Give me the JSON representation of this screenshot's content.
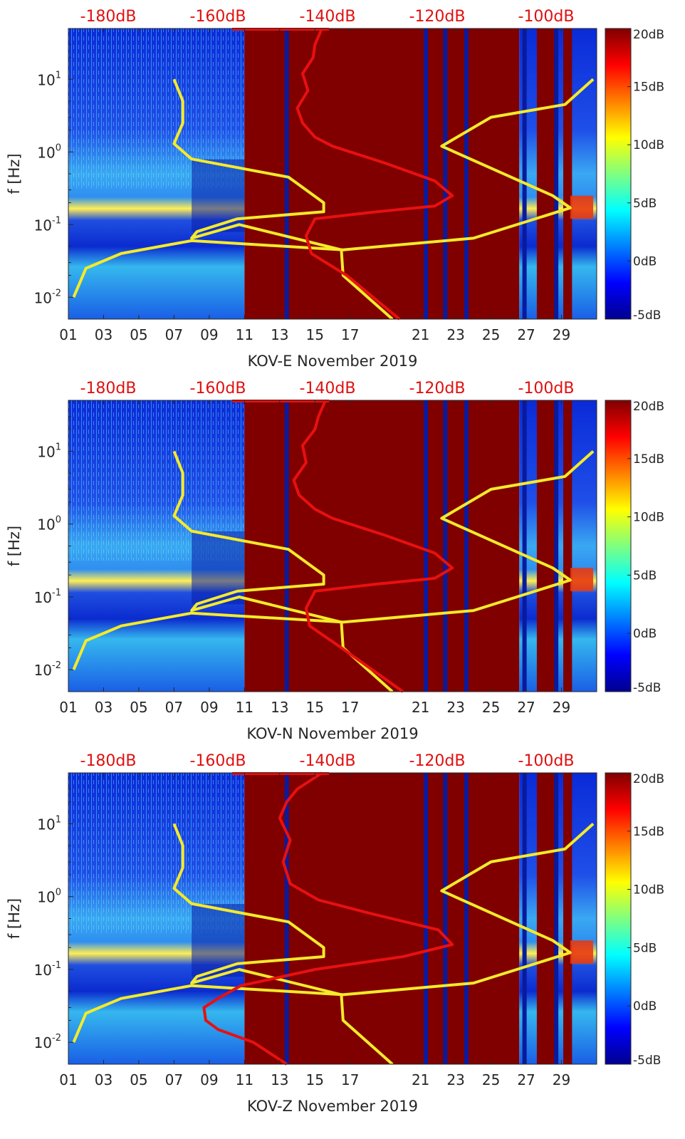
{
  "chart_data": [
    {
      "type": "heatmap",
      "title": "KOV-E November 2019",
      "xlabel": "KOV-E November 2019",
      "ylabel": "f [Hz]",
      "x_ticks": [
        "01",
        "03",
        "05",
        "07",
        "09",
        "11",
        "13",
        "15",
        "17",
        "21",
        "23",
        "25",
        "27",
        "29"
      ],
      "y_ticks": [
        {
          "exp": "-2"
        },
        {
          "exp": "-1"
        },
        {
          "exp": "0"
        },
        {
          "exp": "1"
        }
      ],
      "yscale": "log",
      "ylim": [
        0.005,
        50
      ],
      "top_axis_ticks": [
        "-180dB",
        "-160dB",
        "-140dB",
        "-120dB",
        "-100dB"
      ],
      "colorbar": {
        "ticks": [
          "20dB",
          "15dB",
          "10dB",
          "5dB",
          "0dB",
          "-5dB"
        ],
        "range": [
          -5,
          20
        ]
      },
      "saturated_segments": [
        [
          11,
          26.6
        ],
        [
          27.6,
          28.6
        ],
        [
          29.1,
          29.6
        ]
      ],
      "dark_stripes": [
        13.4,
        21.3,
        22.4,
        23.6,
        26.9,
        28.7
      ],
      "series": [
        {
          "name": "yellow",
          "color": "#f5ea2a",
          "x": [
            19.4,
            16.6,
            16.5,
            10.7,
            8.0,
            8.3,
            10.6,
            15.5,
            15.5,
            13.5,
            8.0,
            7.0,
            7.5,
            7.5,
            7.0
          ],
          "y": [
            0.005,
            0.02,
            0.045,
            0.1,
            0.065,
            0.08,
            0.12,
            0.15,
            0.2,
            0.45,
            0.8,
            1.3,
            2.5,
            5,
            10
          ],
          "x2": [
            1.3,
            2.0,
            4.0,
            8.0,
            16.6,
            24.0,
            29.5,
            28.5,
            22.2,
            25.0,
            29.2,
            30.8
          ],
          "y2": [
            0.01,
            0.025,
            0.04,
            0.06,
            0.045,
            0.065,
            0.17,
            0.25,
            1.2,
            3.0,
            4.5,
            10
          ]
        },
        {
          "name": "red",
          "color": "#e81010",
          "x": [
            19.8,
            16.8,
            14.8,
            14.5,
            15.0,
            18.5,
            21.8,
            22.8,
            21.8,
            19.0,
            16.0,
            15.0,
            14.3,
            14.0,
            14.6,
            14.3,
            14.9,
            15.0,
            15.4
          ],
          "y": [
            0.005,
            0.02,
            0.04,
            0.07,
            0.12,
            0.15,
            0.18,
            0.25,
            0.4,
            0.7,
            1.2,
            1.6,
            2.5,
            4,
            7,
            12,
            20,
            30,
            50
          ]
        }
      ]
    },
    {
      "type": "heatmap",
      "title": "KOV-N November 2019",
      "xlabel": "KOV-N November 2019",
      "ylabel": "f [Hz]",
      "x_ticks": [
        "01",
        "03",
        "05",
        "07",
        "09",
        "11",
        "13",
        "15",
        "17",
        "21",
        "23",
        "25",
        "27",
        "29"
      ],
      "y_ticks": [
        {
          "exp": "-2"
        },
        {
          "exp": "-1"
        },
        {
          "exp": "0"
        },
        {
          "exp": "1"
        }
      ],
      "yscale": "log",
      "ylim": [
        0.005,
        50
      ],
      "top_axis_ticks": [
        "-180dB",
        "-160dB",
        "-140dB",
        "-120dB",
        "-100dB"
      ],
      "colorbar": {
        "ticks": [
          "20dB",
          "15dB",
          "10dB",
          "5dB",
          "0dB",
          "-5dB"
        ],
        "range": [
          -5,
          20
        ]
      },
      "saturated_segments": [
        [
          11,
          26.6
        ],
        [
          27.6,
          28.6
        ],
        [
          29.1,
          29.6
        ]
      ],
      "dark_stripes": [
        13.4,
        21.3,
        22.4,
        23.6,
        26.9,
        28.7
      ],
      "series": [
        {
          "name": "yellow",
          "color": "#f5ea2a",
          "x": [
            19.4,
            16.6,
            16.5,
            10.7,
            8.0,
            8.3,
            10.6,
            15.5,
            15.5,
            13.5,
            8.0,
            7.0,
            7.5,
            7.5,
            7.0
          ],
          "y": [
            0.005,
            0.02,
            0.045,
            0.1,
            0.065,
            0.08,
            0.12,
            0.15,
            0.2,
            0.45,
            0.8,
            1.3,
            2.5,
            5,
            10
          ],
          "x2": [
            1.3,
            2.0,
            4.0,
            8.0,
            16.6,
            24.0,
            29.5,
            28.5,
            22.2,
            25.0,
            29.2,
            30.8
          ],
          "y2": [
            0.01,
            0.025,
            0.04,
            0.06,
            0.045,
            0.065,
            0.17,
            0.25,
            1.2,
            3.0,
            4.5,
            10
          ]
        },
        {
          "name": "red",
          "color": "#e81010",
          "x": [
            20.0,
            16.5,
            14.7,
            14.5,
            15.0,
            18.5,
            21.8,
            22.8,
            21.8,
            19.0,
            16.0,
            15.0,
            14.1,
            13.8,
            14.5,
            14.3,
            15.0,
            15.2,
            15.6
          ],
          "y": [
            0.005,
            0.02,
            0.04,
            0.07,
            0.12,
            0.15,
            0.18,
            0.25,
            0.4,
            0.7,
            1.2,
            1.6,
            2.5,
            4,
            7,
            12,
            20,
            30,
            50
          ]
        }
      ]
    },
    {
      "type": "heatmap",
      "title": "KOV-Z November 2019",
      "xlabel": "KOV-Z November 2019",
      "ylabel": "f [Hz]",
      "x_ticks": [
        "01",
        "03",
        "05",
        "07",
        "09",
        "11",
        "13",
        "15",
        "17",
        "21",
        "23",
        "25",
        "27",
        "29"
      ],
      "y_ticks": [
        {
          "exp": "-2"
        },
        {
          "exp": "-1"
        },
        {
          "exp": "0"
        },
        {
          "exp": "1"
        }
      ],
      "yscale": "log",
      "ylim": [
        0.005,
        50
      ],
      "top_axis_ticks": [
        "-180dB",
        "-160dB",
        "-140dB",
        "-120dB",
        "-100dB"
      ],
      "colorbar": {
        "ticks": [
          "20dB",
          "15dB",
          "10dB",
          "5dB",
          "0dB",
          "-5dB"
        ],
        "range": [
          -5,
          20
        ]
      },
      "saturated_segments": [
        [
          11,
          26.6
        ],
        [
          27.6,
          28.6
        ],
        [
          29.1,
          29.6
        ]
      ],
      "dark_stripes": [
        13.4,
        21.3,
        22.4,
        23.6,
        26.9,
        28.7
      ],
      "series": [
        {
          "name": "yellow",
          "color": "#f5ea2a",
          "x": [
            19.4,
            16.6,
            16.5,
            10.7,
            8.0,
            8.3,
            10.6,
            15.5,
            15.5,
            13.5,
            8.0,
            7.0,
            7.5,
            7.5,
            7.0
          ],
          "y": [
            0.005,
            0.02,
            0.045,
            0.1,
            0.065,
            0.08,
            0.12,
            0.15,
            0.2,
            0.45,
            0.8,
            1.3,
            2.5,
            5,
            10
          ],
          "x2": [
            1.3,
            2.0,
            4.0,
            8.0,
            16.6,
            24.0,
            29.5,
            28.5,
            22.2,
            25.0,
            29.2,
            30.8
          ],
          "y2": [
            0.01,
            0.025,
            0.04,
            0.06,
            0.045,
            0.065,
            0.17,
            0.25,
            1.2,
            3.0,
            4.5,
            10
          ]
        },
        {
          "name": "red",
          "color": "#e81010",
          "x": [
            13.4,
            11.5,
            9.5,
            8.8,
            8.7,
            9.5,
            10.8,
            15.0,
            20.0,
            22.8,
            22.0,
            18.0,
            15.2,
            13.6,
            13.2,
            13.6,
            13.0,
            13.4,
            14.0,
            15.4
          ],
          "y": [
            0.005,
            0.01,
            0.015,
            0.02,
            0.03,
            0.04,
            0.06,
            0.1,
            0.15,
            0.22,
            0.35,
            0.6,
            0.9,
            1.5,
            3,
            6,
            12,
            20,
            30,
            50
          ]
        }
      ]
    }
  ]
}
